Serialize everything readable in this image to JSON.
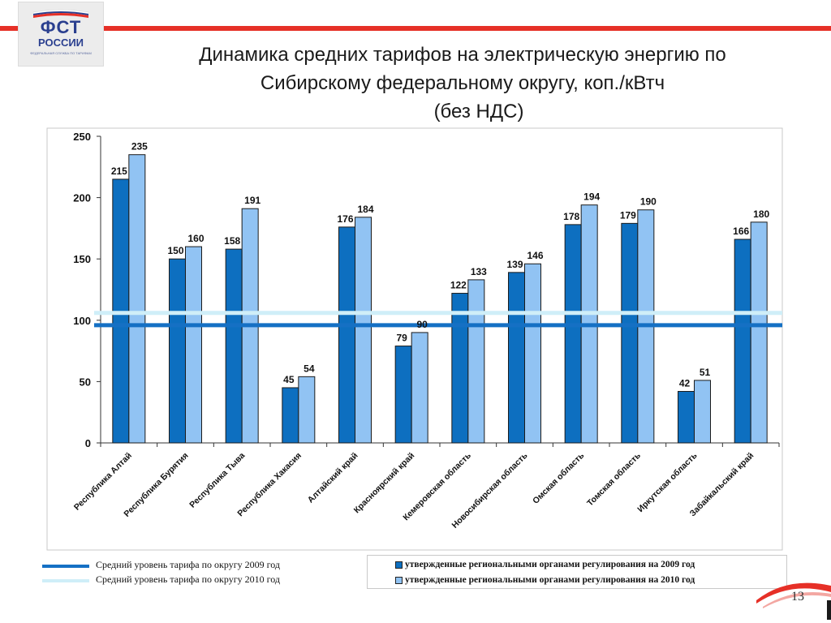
{
  "logo": {
    "main": "ФСТ",
    "sub": "РОССИИ",
    "tiny": "ФЕДЕРАЛЬНАЯ СЛУЖБА ПО ТАРИФАМ"
  },
  "title": {
    "line1": "Динамика средних тарифов на электрическую энергию по",
    "line2": "Сибирскому федеральному округу, коп./кВтч",
    "line3": "(без НДС)"
  },
  "page_number": "13",
  "colors": {
    "series_2009": "#0d6fc0",
    "series_2010": "#91c3f3",
    "avg_2009": "#1570c4",
    "avg_2010": "#cfeef8",
    "accent_red": "#e63027"
  },
  "chart_data": {
    "type": "bar",
    "title": "",
    "xlabel": "",
    "ylabel": "",
    "ylim": [
      0,
      250
    ],
    "yticks": [
      0,
      50,
      100,
      150,
      200,
      250
    ],
    "grid": false,
    "categories": [
      "Республика Алтай",
      "Республика Бурятия",
      "Республика Тыва",
      "Республика Хакасия",
      "Алтайский край",
      "Красноярский край",
      "Кемеровская область",
      "Новосибирская область",
      "Омская область",
      "Томская область",
      "Иркутская область",
      "Забайкальский край"
    ],
    "series": [
      {
        "name": "утвержденные региональными органами регулирования на 2009 год",
        "values": [
          215,
          150,
          158,
          45,
          176,
          79,
          122,
          139,
          178,
          179,
          42,
          166
        ]
      },
      {
        "name": "утвержденные региональными органами регулирования на 2010 год",
        "values": [
          235,
          160,
          191,
          54,
          184,
          90,
          133,
          146,
          194,
          190,
          51,
          180
        ]
      }
    ],
    "reference_lines": [
      {
        "name": "Средний уровень тарифа по округу 2009 год",
        "value": 96
      },
      {
        "name": "Средний уровень тарифа по округу 2010 год",
        "value": 106
      }
    ],
    "legend_position": "bottom"
  }
}
